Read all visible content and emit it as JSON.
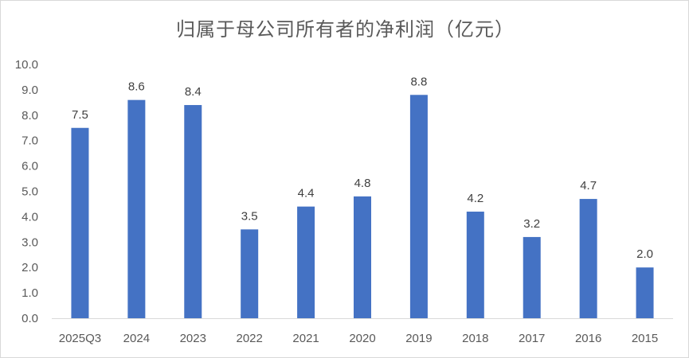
{
  "chart_data": {
    "type": "bar",
    "title": "归属于母公司所有者的净利润（亿元）",
    "categories": [
      "2025Q3",
      "2024",
      "2023",
      "2022",
      "2021",
      "2020",
      "2019",
      "2018",
      "2017",
      "2016",
      "2015"
    ],
    "values": [
      7.5,
      8.6,
      8.4,
      3.5,
      4.4,
      4.8,
      8.8,
      4.2,
      3.2,
      4.7,
      2.0
    ],
    "ylim": [
      0,
      10
    ],
    "yticks": [
      "0.0",
      "1.0",
      "2.0",
      "3.0",
      "4.0",
      "5.0",
      "6.0",
      "7.0",
      "8.0",
      "9.0",
      "10.0"
    ],
    "grid": false,
    "legend": "none",
    "bar_color": "#4472C4",
    "xlabel": "",
    "ylabel": ""
  }
}
